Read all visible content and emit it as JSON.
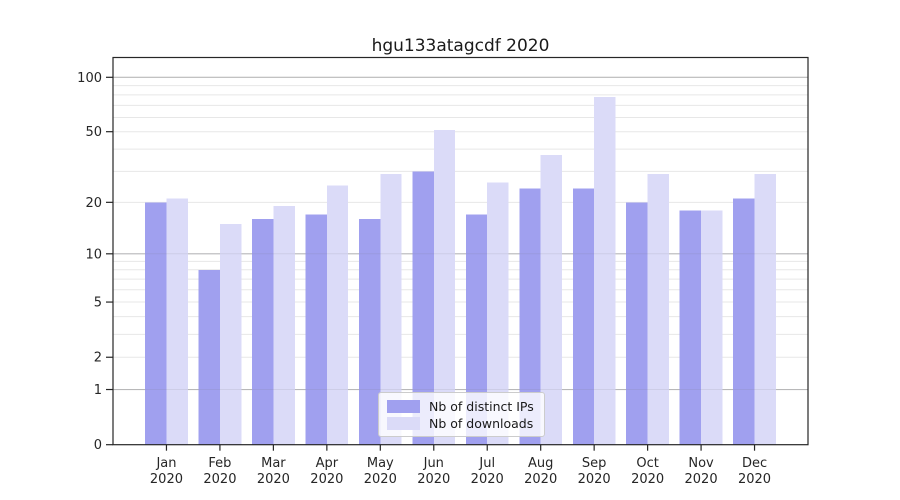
{
  "figure": {
    "title": "hgu133atagcdf 2020",
    "background_color": "#ffffff"
  },
  "chart_data": {
    "type": "bar",
    "title": "hgu133atagcdf 2020",
    "categories": [
      "Jan",
      "Feb",
      "Mar",
      "Apr",
      "May",
      "Jun",
      "Jul",
      "Aug",
      "Sep",
      "Oct",
      "Nov",
      "Dec"
    ],
    "category_year_label": "2020",
    "series": [
      {
        "name": "Nb of distinct IPs",
        "color": "#a0a0ef",
        "values": [
          20,
          8,
          16,
          17,
          16,
          30,
          17,
          24,
          24,
          20,
          18,
          21
        ]
      },
      {
        "name": "Nb of downloads",
        "color": "#dbdbf8",
        "values": [
          21,
          15,
          19,
          25,
          29,
          51,
          26,
          37,
          78,
          29,
          18,
          29
        ]
      }
    ],
    "xlabel": "",
    "ylabel": "",
    "yscale": "log10(1 + x)",
    "ylim": [
      0,
      128
    ],
    "ytick_labels": [
      "0",
      "1",
      "2",
      "5",
      "10",
      "20",
      "50",
      "100"
    ],
    "yticks": [
      0,
      1,
      2,
      5,
      10,
      20,
      50,
      100
    ],
    "major_gridlines": [
      1,
      10,
      100
    ],
    "minor_gridlines": [
      2,
      3,
      4,
      5,
      6,
      7,
      8,
      9,
      20,
      30,
      40,
      50,
      60,
      70,
      80,
      90
    ],
    "grid": "horizontal",
    "legend_position": "inside-bottom-center",
    "colors": {
      "axis": "#262626",
      "tick_label": "#262626",
      "major_grid": "#c3c3c3",
      "minor_grid": "#e7e7e7",
      "legend_border": "#cccccc"
    }
  }
}
